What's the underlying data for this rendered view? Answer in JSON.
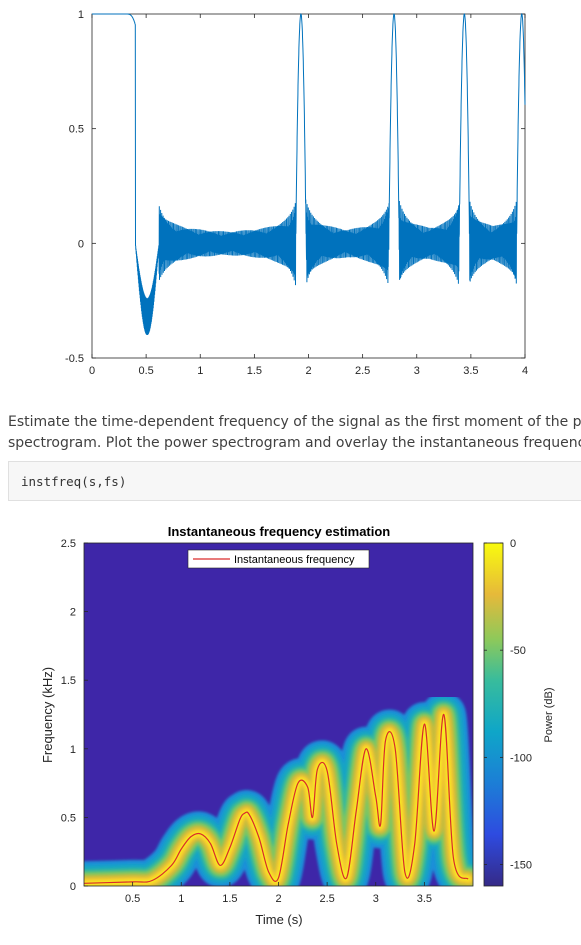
{
  "plot1": {
    "chart_data": {
      "type": "line",
      "xlim": [
        0,
        4
      ],
      "ylim": [
        -0.5,
        1
      ],
      "x_ticks": [
        "0",
        "0.5",
        "1",
        "1.5",
        "2",
        "2.5",
        "3",
        "3.5",
        "4"
      ],
      "y_ticks": [
        "-0.5",
        "0",
        "0.5",
        "1"
      ],
      "peak_times": [
        0.56,
        1.93,
        2.79,
        3.44,
        3.97
      ],
      "color": "#0072BD"
    }
  },
  "text": {
    "line1": "Estimate the time-dependent frequency of the signal as the first moment of the powe",
    "line2": "spectrogram. Plot the power spectrogram and overlay the instantaneous frequency."
  },
  "code": "instfreq(s,fs)",
  "plot2": {
    "chart_data": {
      "type": "heatmap",
      "title": "Instantaneous frequency estimation",
      "xlabel": "Time (s)",
      "ylabel": "Frequency (kHz)",
      "xlim": [
        0,
        4
      ],
      "ylim": [
        0,
        2.5
      ],
      "x_ticks": [
        "0.5",
        "1",
        "1.5",
        "2",
        "2.5",
        "3",
        "3.5"
      ],
      "y_ticks": [
        "0",
        "0.5",
        "1",
        "1.5",
        "2",
        "2.5"
      ],
      "legend": {
        "label": "Instantaneous frequency",
        "location": "top-center"
      },
      "colorbar": {
        "label": "Power (dB)",
        "ticks": [
          "0",
          "-50",
          "-100",
          "-150"
        ],
        "range": [
          -160,
          0
        ]
      },
      "line_color": "#D92B2B",
      "background_color": "#3E26A8",
      "inst_freq": {
        "t": [
          0.0,
          0.5,
          0.7,
          0.9,
          1.0,
          1.1,
          1.2,
          1.3,
          1.4,
          1.5,
          1.6,
          1.65,
          1.7,
          1.8,
          1.9,
          2.0,
          2.1,
          2.2,
          2.3,
          2.35,
          2.4,
          2.5,
          2.6,
          2.7,
          2.8,
          2.9,
          3.0,
          3.05,
          3.1,
          3.2,
          3.3,
          3.4,
          3.5,
          3.6,
          3.7,
          3.8,
          3.95
        ],
        "freq": [
          0.02,
          0.03,
          0.04,
          0.15,
          0.27,
          0.36,
          0.38,
          0.31,
          0.15,
          0.28,
          0.48,
          0.53,
          0.52,
          0.35,
          0.1,
          0.06,
          0.45,
          0.75,
          0.72,
          0.5,
          0.85,
          0.84,
          0.3,
          0.06,
          0.55,
          1.0,
          0.65,
          0.45,
          1.06,
          1.0,
          0.1,
          0.3,
          1.18,
          0.4,
          1.25,
          0.2,
          0.05
        ]
      }
    }
  }
}
